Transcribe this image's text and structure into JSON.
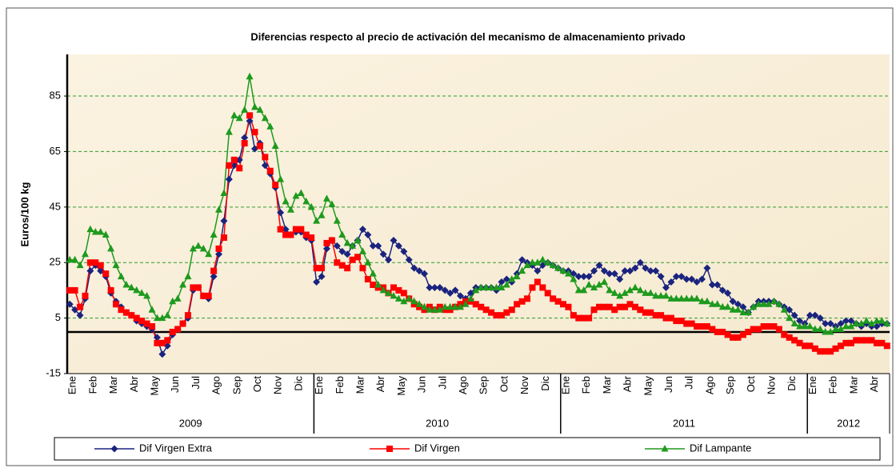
{
  "chart_data": {
    "type": "line",
    "title": "Diferencias respecto al precio de activación del mecanismo de almacenamiento privado",
    "y_label": "Euros/100 kg",
    "ylim": [
      -15,
      100
    ],
    "yticks": [
      -15,
      5,
      25,
      45,
      65,
      85
    ],
    "grid": true,
    "reference_line": 0,
    "legend": "bottom",
    "year_groups": [
      "2009",
      "2010",
      "2011",
      "2012"
    ],
    "categories": [
      "Ene",
      null,
      null,
      null,
      "Feb",
      null,
      null,
      null,
      "Mar",
      null,
      null,
      null,
      "Abr",
      null,
      null,
      null,
      "May",
      null,
      null,
      null,
      "Jun",
      null,
      null,
      null,
      "Jul",
      null,
      null,
      null,
      "Ago",
      null,
      null,
      null,
      "Sep",
      null,
      null,
      null,
      "Oct",
      null,
      null,
      null,
      "Nov",
      null,
      null,
      null,
      "Dic",
      null,
      null,
      null,
      "Ene",
      null,
      null,
      null,
      "Feb",
      null,
      null,
      null,
      "Mar",
      null,
      null,
      null,
      "Abr",
      null,
      null,
      null,
      "May",
      null,
      null,
      null,
      "Jun",
      null,
      null,
      null,
      "Jul",
      null,
      null,
      null,
      "Ago",
      null,
      null,
      null,
      "Sep",
      null,
      null,
      null,
      "Oct",
      null,
      null,
      null,
      "Nov",
      null,
      null,
      null,
      "Dic",
      null,
      null,
      null,
      "Ene",
      null,
      null,
      null,
      "Feb",
      null,
      null,
      null,
      "Mar",
      null,
      null,
      null,
      "Abr",
      null,
      null,
      null,
      "May",
      null,
      null,
      null,
      "Jun",
      null,
      null,
      null,
      "Jul",
      null,
      null,
      null,
      "Ago",
      null,
      null,
      null,
      "Sep",
      null,
      null,
      null,
      "Oct",
      null,
      null,
      null,
      "Nov",
      null,
      null,
      null,
      "Dic",
      null,
      null,
      null,
      "Ene",
      null,
      null,
      null,
      "Feb",
      null,
      null,
      null,
      "Mar",
      null,
      null,
      null,
      "Abr",
      null,
      null,
      null
    ],
    "series": [
      {
        "name": "Dif Virgen Extra",
        "color": "#1a237e",
        "marker": "diamond",
        "values": [
          10,
          8,
          6,
          12,
          22,
          24,
          22,
          20,
          14,
          11,
          9,
          7,
          6,
          4,
          3,
          2,
          1,
          -2,
          -8,
          -5,
          -1,
          1,
          3,
          5,
          15,
          16,
          13,
          12,
          20,
          28,
          40,
          55,
          60,
          62,
          70,
          76,
          66,
          68,
          60,
          57,
          52,
          43,
          37,
          35,
          36,
          36,
          34,
          33,
          18,
          20,
          30,
          33,
          31,
          29,
          28,
          31,
          33,
          37,
          35,
          31,
          31,
          28,
          26,
          33,
          31,
          29,
          26,
          23,
          22,
          21,
          16,
          16,
          16,
          15,
          14,
          15,
          13,
          12,
          14,
          16,
          16,
          16,
          16,
          15,
          18,
          19,
          18,
          21,
          26,
          25,
          24,
          22,
          24,
          25,
          24,
          23,
          22,
          22,
          21,
          20,
          20,
          20,
          22,
          24,
          22,
          21,
          21,
          19,
          22,
          22,
          23,
          25,
          23,
          22,
          22,
          20,
          16,
          18,
          20,
          20,
          19,
          19,
          18,
          19,
          23,
          17,
          17,
          15,
          14,
          11,
          10,
          9,
          7,
          9,
          11,
          11,
          11,
          11,
          10,
          9,
          8,
          6,
          4,
          3,
          6,
          6,
          5,
          3,
          3,
          2,
          3,
          4,
          4,
          3,
          2,
          3,
          2,
          2,
          3,
          3
        ]
      },
      {
        "name": "Dif Virgen",
        "color": "#ff0000",
        "marker": "square",
        "values": [
          15,
          15,
          9,
          13,
          25,
          25,
          24,
          21,
          15,
          10,
          8,
          7,
          6,
          5,
          4,
          3,
          2,
          -4,
          -4,
          -3,
          0,
          1,
          3,
          6,
          16,
          16,
          13,
          13,
          22,
          30,
          34,
          60,
          62,
          59,
          68,
          78,
          72,
          67,
          63,
          58,
          53,
          37,
          35,
          35,
          37,
          37,
          35,
          34,
          23,
          23,
          32,
          33,
          25,
          24,
          23,
          26,
          27,
          23,
          19,
          17,
          16,
          16,
          14,
          16,
          15,
          14,
          12,
          10,
          9,
          8,
          9,
          8,
          9,
          8,
          8,
          9,
          10,
          11,
          11,
          10,
          9,
          8,
          7,
          6,
          6,
          7,
          8,
          10,
          11,
          12,
          16,
          18,
          16,
          14,
          12,
          11,
          10,
          9,
          6,
          5,
          5,
          5,
          8,
          9,
          9,
          9,
          8,
          9,
          9,
          10,
          9,
          8,
          7,
          7,
          6,
          6,
          5,
          5,
          4,
          4,
          3,
          3,
          2,
          2,
          2,
          1,
          0,
          0,
          -1,
          -2,
          -2,
          -1,
          0,
          1,
          1,
          2,
          2,
          2,
          1,
          -1,
          -2,
          -3,
          -4,
          -5,
          -5,
          -6,
          -7,
          -7,
          -7,
          -6,
          -5,
          -4,
          -4,
          -3,
          -3,
          -3,
          -3,
          -4,
          -4,
          -5
        ]
      },
      {
        "name": "Dif Lampante",
        "color": "#1e9a1e",
        "marker": "triangle",
        "values": [
          26,
          26,
          24,
          28,
          37,
          36,
          36,
          35,
          30,
          24,
          20,
          17,
          16,
          15,
          14,
          13,
          8,
          5,
          5,
          6,
          11,
          12,
          17,
          20,
          30,
          31,
          30,
          28,
          35,
          44,
          50,
          72,
          78,
          77,
          80,
          92,
          81,
          80,
          77,
          74,
          67,
          55,
          47,
          44,
          49,
          50,
          47,
          45,
          40,
          42,
          48,
          46,
          40,
          35,
          32,
          31,
          33,
          29,
          25,
          21,
          17,
          15,
          14,
          13,
          12,
          11,
          12,
          11,
          10,
          9,
          8,
          8,
          8,
          9,
          9,
          9,
          9,
          10,
          12,
          15,
          16,
          16,
          16,
          16,
          16,
          17,
          19,
          20,
          22,
          24,
          25,
          25,
          26,
          25,
          24,
          23,
          22,
          21,
          19,
          15,
          15,
          17,
          16,
          17,
          18,
          15,
          14,
          13,
          14,
          15,
          16,
          15,
          14,
          14,
          13,
          13,
          13,
          12,
          12,
          12,
          12,
          12,
          12,
          11,
          11,
          10,
          10,
          9,
          9,
          8,
          8,
          7,
          7,
          9,
          10,
          10,
          10,
          11,
          10,
          8,
          5,
          3,
          2,
          2,
          2,
          1,
          1,
          0,
          0,
          1,
          1,
          2,
          2,
          3,
          3,
          4,
          3,
          4,
          4,
          3
        ]
      }
    ]
  }
}
